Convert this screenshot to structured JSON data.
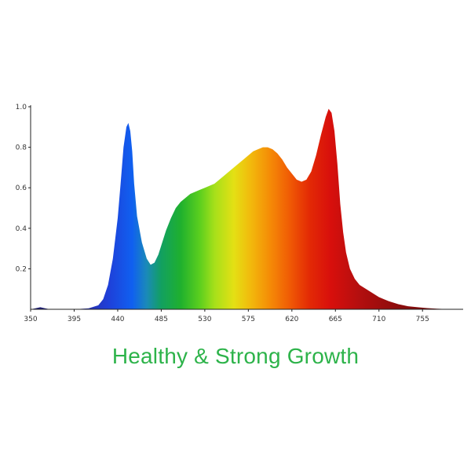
{
  "caption": {
    "text": "Healthy & Strong Growth",
    "color": "#2db34a"
  },
  "chart_data": {
    "type": "area",
    "title": "",
    "xlabel": "",
    "ylabel": "",
    "xlim": [
      350,
      797
    ],
    "ylim": [
      0,
      1.0
    ],
    "grid": false,
    "legend": "none",
    "x_ticks": [
      350,
      395,
      440,
      485,
      530,
      575,
      620,
      665,
      710,
      755
    ],
    "x_tick_labels": [
      "350",
      "395",
      "440",
      "485",
      "530",
      "575",
      "620",
      "665",
      "710",
      "755"
    ],
    "y_ticks": [
      0.2,
      0.4,
      0.6,
      0.8,
      1.0
    ],
    "y_tick_labels": [
      "0.2",
      "0.4",
      "0.6",
      "0.8",
      "1.0"
    ],
    "fill": "wavelength spectrum gradient (violet-blue through green, yellow, orange, red to dark red)",
    "series": [
      {
        "x": [
          350,
          355,
          360,
          365,
          370,
          380,
          395,
          410,
          420,
          425,
          430,
          435,
          440,
          443,
          446,
          449,
          451,
          453,
          455,
          457,
          460,
          465,
          470,
          474,
          478,
          482,
          486,
          490,
          495,
          500,
          505,
          510,
          515,
          520,
          525,
          530,
          540,
          550,
          560,
          570,
          580,
          585,
          590,
          595,
          600,
          605,
          610,
          615,
          620,
          625,
          630,
          635,
          640,
          645,
          650,
          655,
          658,
          661,
          664,
          667,
          670,
          673,
          676,
          680,
          685,
          690,
          700,
          710,
          720,
          730,
          740,
          750,
          760,
          770,
          780,
          797
        ],
        "values": [
          0,
          0.005,
          0.01,
          0.005,
          0,
          0,
          0,
          0.005,
          0.02,
          0.05,
          0.12,
          0.25,
          0.45,
          0.62,
          0.8,
          0.9,
          0.92,
          0.88,
          0.78,
          0.62,
          0.46,
          0.33,
          0.25,
          0.22,
          0.23,
          0.27,
          0.33,
          0.39,
          0.45,
          0.5,
          0.53,
          0.55,
          0.57,
          0.58,
          0.59,
          0.6,
          0.62,
          0.66,
          0.7,
          0.74,
          0.78,
          0.79,
          0.8,
          0.8,
          0.79,
          0.77,
          0.74,
          0.7,
          0.67,
          0.64,
          0.63,
          0.64,
          0.68,
          0.76,
          0.86,
          0.95,
          0.99,
          0.97,
          0.88,
          0.72,
          0.52,
          0.38,
          0.28,
          0.2,
          0.15,
          0.12,
          0.09,
          0.06,
          0.04,
          0.025,
          0.015,
          0.01,
          0.006,
          0.003,
          0.001,
          0
        ]
      }
    ]
  }
}
